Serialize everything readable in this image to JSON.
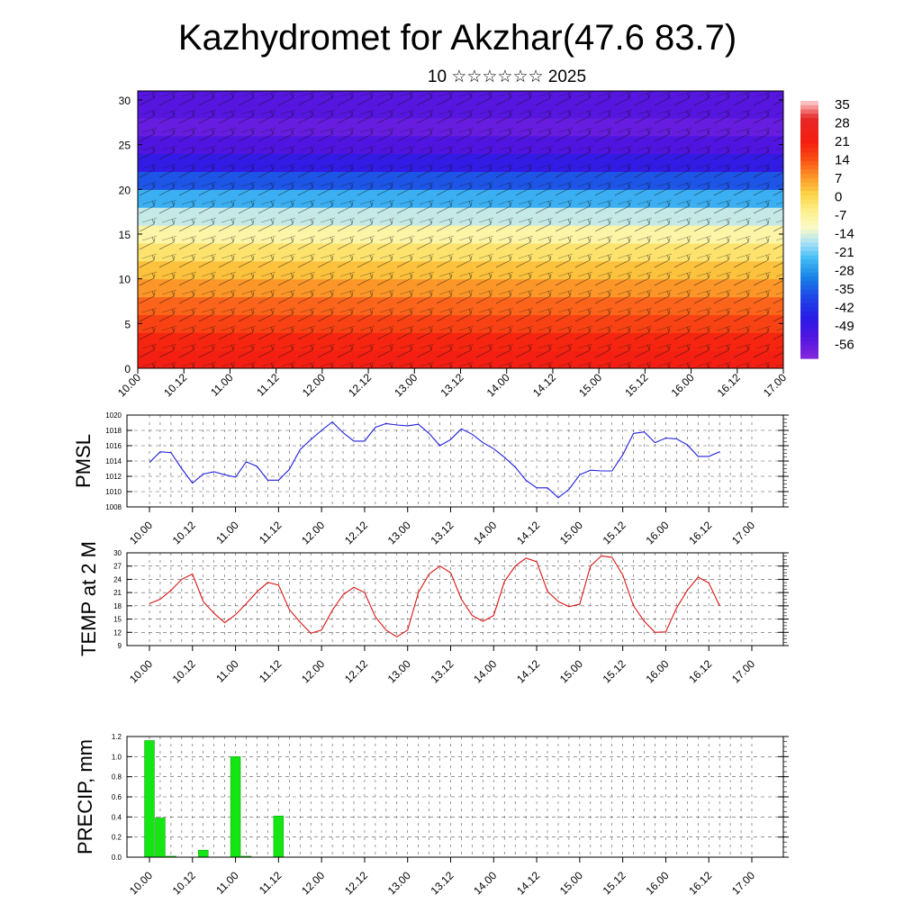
{
  "figure": {
    "title": "Kazhydromet for Akzhar(47.6 83.7)",
    "subtitle": "10 ☆☆☆☆☆☆ 2025"
  },
  "colors": {
    "pmsl_line": "#1f1fe0",
    "temp_line": "#dc1414",
    "precip_bar": "#14e614",
    "precip_bar_edge": "#0a9a0a",
    "grid": "#555555"
  },
  "chart_data": [
    {
      "type": "heatmap",
      "name": "cross-section",
      "xlabel": "",
      "ylabel": "",
      "xticks": [
        "10.00",
        "10.12",
        "11.00",
        "11.12",
        "12.00",
        "12.12",
        "13.00",
        "13.12",
        "14.00",
        "14.12",
        "15.00",
        "15.12",
        "16.00",
        "16.12",
        "17.00"
      ],
      "ylim": [
        0,
        31
      ],
      "yticks": [
        0,
        5,
        10,
        15,
        20,
        25,
        30
      ],
      "colorbar": {
        "labels": [
          "35",
          "28",
          "21",
          "14",
          "7",
          "0",
          "-7",
          "-14",
          "-21",
          "-28",
          "-35",
          "-42",
          "-49",
          "-56"
        ],
        "range": [
          -63,
          42
        ]
      },
      "overlay": "wind barbs",
      "levels": [
        0,
        2,
        4,
        6,
        8,
        10,
        12,
        14,
        16,
        18,
        20,
        22,
        24,
        26,
        28,
        30,
        31
      ],
      "bands": [
        {
          "value": 26,
          "z": 0
        },
        {
          "value": 24,
          "z": 2
        },
        {
          "value": 20,
          "z": 4
        },
        {
          "value": 16,
          "z": 6
        },
        {
          "value": 11,
          "z": 8
        },
        {
          "value": 6,
          "z": 10
        },
        {
          "value": 0,
          "z": 12
        },
        {
          "value": -6,
          "z": 14
        },
        {
          "value": -14,
          "z": 16
        },
        {
          "value": -24,
          "z": 18
        },
        {
          "value": -36,
          "z": 20
        },
        {
          "value": -48,
          "z": 22
        },
        {
          "value": -54,
          "z": 24
        },
        {
          "value": -58,
          "z": 26
        },
        {
          "value": -55,
          "z": 28
        },
        {
          "value": -55,
          "z": 30
        }
      ]
    },
    {
      "type": "line",
      "name": "PMSL",
      "ylabel": "PMSL",
      "xticks": [
        "10.00",
        "10.12",
        "11.00",
        "11.12",
        "12.00",
        "12.12",
        "13.00",
        "13.12",
        "14.00",
        "14.12",
        "15.00",
        "15.12",
        "16.00",
        "16.12",
        "17.00"
      ],
      "ylim": [
        1008,
        1020
      ],
      "yticks": [
        "1008",
        "1010",
        "1012",
        "1014",
        "1016",
        "1018",
        "1020"
      ],
      "x": [
        0,
        3,
        6,
        9,
        12,
        15,
        18,
        21,
        24,
        27,
        30,
        33,
        36,
        39,
        42,
        45,
        48,
        51,
        54,
        57,
        60,
        63,
        66,
        69,
        72,
        75,
        78,
        81,
        84,
        87,
        90,
        93,
        96,
        99,
        102,
        105,
        108,
        111,
        114,
        117,
        120,
        123,
        126,
        129,
        132,
        135,
        138,
        141,
        144,
        147,
        150,
        153,
        156,
        159
      ],
      "values": [
        1013.8,
        1015.2,
        1015.1,
        1013.0,
        1011.1,
        1012.3,
        1012.6,
        1012.2,
        1011.9,
        1013.9,
        1013.3,
        1011.5,
        1011.5,
        1012.9,
        1015.5,
        1016.8,
        1018.0,
        1019.1,
        1017.7,
        1016.6,
        1016.6,
        1018.4,
        1018.9,
        1018.7,
        1018.6,
        1018.8,
        1017.6,
        1016.0,
        1016.8,
        1018.2,
        1017.5,
        1016.4,
        1015.6,
        1014.5,
        1013.2,
        1011.5,
        1010.5,
        1010.5,
        1009.2,
        1010.3,
        1012.2,
        1012.8,
        1012.7,
        1012.7,
        1014.8,
        1017.6,
        1017.8,
        1016.4,
        1017.0,
        1016.9,
        1016.1,
        1014.6,
        1014.6,
        1015.2
      ]
    },
    {
      "type": "line",
      "name": "TEMP at 2 M",
      "ylabel": "TEMP at 2 M",
      "xticks": [
        "10.00",
        "10.12",
        "11.00",
        "11.12",
        "12.00",
        "12.12",
        "13.00",
        "13.12",
        "14.00",
        "14.12",
        "15.00",
        "15.12",
        "16.00",
        "16.12",
        "17.00"
      ],
      "ylim": [
        9,
        30
      ],
      "yticks": [
        "9",
        "12",
        "15",
        "18",
        "21",
        "24",
        "27",
        "30"
      ],
      "x": [
        0,
        3,
        6,
        9,
        12,
        15,
        18,
        21,
        24,
        27,
        30,
        33,
        36,
        39,
        42,
        45,
        48,
        51,
        54,
        57,
        60,
        63,
        66,
        69,
        72,
        75,
        78,
        81,
        84,
        87,
        90,
        93,
        96,
        99,
        102,
        105,
        108,
        111,
        114,
        117,
        120,
        123,
        126,
        129,
        132,
        135,
        138,
        141,
        144,
        147,
        150,
        153,
        156,
        159
      ],
      "values": [
        18.5,
        19.5,
        21.5,
        24.0,
        25.2,
        19.0,
        16.3,
        14.2,
        16.0,
        18.5,
        21.2,
        23.3,
        22.7,
        17.2,
        14.3,
        11.8,
        12.5,
        17.0,
        20.5,
        22.2,
        21.0,
        15.5,
        12.5,
        11.0,
        12.5,
        21.0,
        25.2,
        27.0,
        25.5,
        19.5,
        15.8,
        14.5,
        15.8,
        23.5,
        27.0,
        28.8,
        28.0,
        21.3,
        19.0,
        17.8,
        18.4,
        27.0,
        29.3,
        29.0,
        25.0,
        18.0,
        14.5,
        12.0,
        12.1,
        17.5,
        21.5,
        24.5,
        23.2,
        18.0
      ]
    },
    {
      "type": "bar",
      "name": "PRECIP",
      "ylabel": "PRECIP, mm",
      "xticks": [
        "10.00",
        "10.12",
        "11.00",
        "11.12",
        "12.00",
        "12.12",
        "13.00",
        "13.12",
        "14.00",
        "14.12",
        "15.00",
        "15.12",
        "16.00",
        "16.12",
        "17.00"
      ],
      "ylim": [
        0,
        1.2
      ],
      "yticks": [
        "0.0",
        "0.2",
        "0.4",
        "0.6",
        "0.8",
        "1.0",
        "1.2"
      ],
      "x": [
        0,
        3,
        6,
        9,
        12,
        15,
        18,
        21,
        24,
        27,
        30,
        33,
        36
      ],
      "values": [
        1.16,
        0.39,
        0.01,
        0,
        0,
        0.07,
        0,
        0,
        1.0,
        0.01,
        0,
        0,
        0.41
      ]
    }
  ]
}
